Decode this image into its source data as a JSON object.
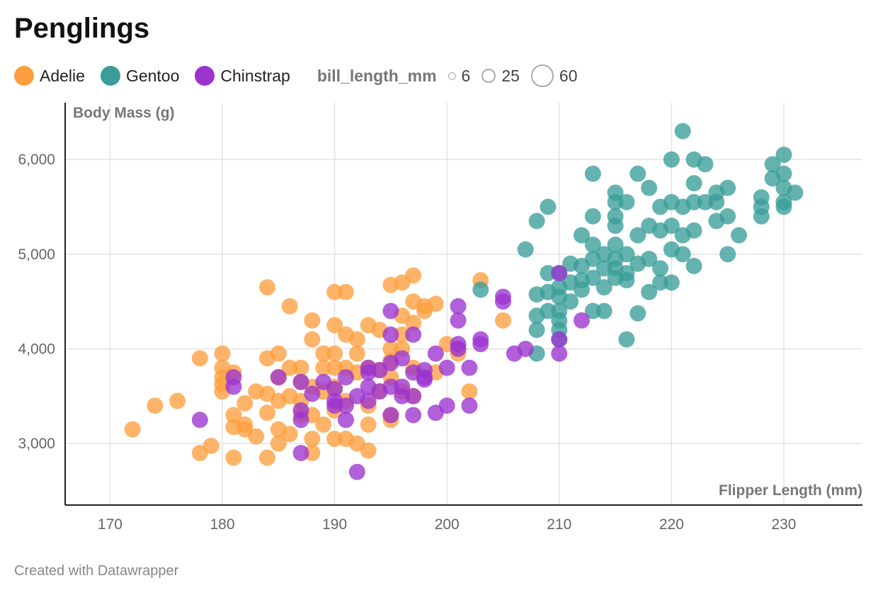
{
  "title": "Penglings",
  "footer": "Created with Datawrapper",
  "legend": {
    "species": [
      {
        "label": "Adelie",
        "color": "#fd9f3f"
      },
      {
        "label": "Gentoo",
        "color": "#3a9d98"
      },
      {
        "label": "Chinstrap",
        "color": "#9b33cf"
      }
    ],
    "size_title": "bill_length_mm",
    "size_items": [
      "6",
      "25",
      "60"
    ]
  },
  "chart_data": {
    "type": "scatter",
    "title": "Penglings",
    "xlabel": "Flipper Length (mm)",
    "ylabel": "Body Mass (g)",
    "xlim": [
      166,
      237
    ],
    "ylim": [
      2350,
      6600
    ],
    "x_ticks": [
      170,
      180,
      190,
      200,
      210,
      220,
      230
    ],
    "y_ticks": [
      3000,
      4000,
      5000,
      6000
    ],
    "x_tick_labels": [
      "170",
      "180",
      "190",
      "200",
      "210",
      "220",
      "230"
    ],
    "y_tick_labels": [
      "3,000",
      "4,000",
      "5,000",
      "6,000"
    ],
    "grid": true,
    "series": [
      {
        "name": "Adelie",
        "color": "#fd9f3f",
        "points": [
          [
            172,
            3150
          ],
          [
            174,
            3400
          ],
          [
            176,
            3450
          ],
          [
            178,
            3900
          ],
          [
            178,
            2900
          ],
          [
            179,
            2975
          ],
          [
            180,
            3950
          ],
          [
            180,
            3800
          ],
          [
            180,
            3700
          ],
          [
            180,
            3625
          ],
          [
            180,
            3550
          ],
          [
            181,
            3750
          ],
          [
            181,
            3300
          ],
          [
            181,
            3175
          ],
          [
            181,
            2850
          ],
          [
            182,
            3425
          ],
          [
            182,
            3200
          ],
          [
            182,
            3150
          ],
          [
            183,
            3550
          ],
          [
            183,
            3075
          ],
          [
            184,
            4650
          ],
          [
            184,
            3900
          ],
          [
            184,
            3525
          ],
          [
            184,
            3325
          ],
          [
            184,
            2850
          ],
          [
            185,
            3950
          ],
          [
            185,
            3700
          ],
          [
            185,
            3450
          ],
          [
            185,
            3150
          ],
          [
            185,
            3000
          ],
          [
            186,
            4450
          ],
          [
            186,
            3800
          ],
          [
            186,
            3500
          ],
          [
            186,
            3100
          ],
          [
            187,
            3800
          ],
          [
            187,
            3650
          ],
          [
            187,
            3450
          ],
          [
            187,
            3300
          ],
          [
            188,
            4300
          ],
          [
            188,
            4100
          ],
          [
            188,
            3600
          ],
          [
            188,
            3300
          ],
          [
            188,
            3050
          ],
          [
            188,
            2900
          ],
          [
            189,
            3950
          ],
          [
            189,
            3800
          ],
          [
            189,
            3550
          ],
          [
            189,
            3200
          ],
          [
            190,
            4600
          ],
          [
            190,
            4250
          ],
          [
            190,
            3950
          ],
          [
            190,
            3800
          ],
          [
            190,
            3600
          ],
          [
            190,
            3350
          ],
          [
            190,
            3050
          ],
          [
            191,
            4600
          ],
          [
            191,
            4150
          ],
          [
            191,
            3800
          ],
          [
            191,
            3450
          ],
          [
            191,
            3050
          ],
          [
            192,
            4100
          ],
          [
            192,
            3950
          ],
          [
            192,
            3750
          ],
          [
            192,
            3000
          ],
          [
            193,
            4250
          ],
          [
            193,
            3800
          ],
          [
            193,
            3400
          ],
          [
            193,
            3200
          ],
          [
            193,
            2925
          ],
          [
            194,
            4200
          ],
          [
            194,
            3775
          ],
          [
            194,
            3550
          ],
          [
            195,
            4675
          ],
          [
            195,
            4000
          ],
          [
            195,
            3875
          ],
          [
            195,
            3700
          ],
          [
            195,
            3300
          ],
          [
            195,
            3250
          ],
          [
            196,
            4700
          ],
          [
            196,
            4350
          ],
          [
            196,
            4150
          ],
          [
            196,
            4000
          ],
          [
            196,
            3550
          ],
          [
            197,
            4775
          ],
          [
            197,
            4500
          ],
          [
            197,
            4275
          ],
          [
            197,
            3800
          ],
          [
            197,
            3500
          ],
          [
            198,
            4450
          ],
          [
            198,
            4400
          ],
          [
            199,
            4475
          ],
          [
            199,
            3750
          ],
          [
            200,
            4050
          ],
          [
            201,
            4000
          ],
          [
            201,
            3950
          ],
          [
            202,
            3550
          ],
          [
            203,
            4725
          ],
          [
            205,
            4300
          ]
        ]
      },
      {
        "name": "Gentoo",
        "color": "#3a9d98",
        "points": [
          [
            203,
            4625
          ],
          [
            207,
            5050
          ],
          [
            208,
            5350
          ],
          [
            208,
            4575
          ],
          [
            208,
            4350
          ],
          [
            208,
            4200
          ],
          [
            208,
            3950
          ],
          [
            209,
            5500
          ],
          [
            209,
            4800
          ],
          [
            209,
            4600
          ],
          [
            209,
            4400
          ],
          [
            210,
            4800
          ],
          [
            210,
            4650
          ],
          [
            210,
            4550
          ],
          [
            210,
            4400
          ],
          [
            210,
            4300
          ],
          [
            210,
            4200
          ],
          [
            210,
            4100
          ],
          [
            211,
            4900
          ],
          [
            211,
            4700
          ],
          [
            211,
            4500
          ],
          [
            212,
            5200
          ],
          [
            212,
            4875
          ],
          [
            212,
            4725
          ],
          [
            212,
            4625
          ],
          [
            213,
            5850
          ],
          [
            213,
            5400
          ],
          [
            213,
            5100
          ],
          [
            213,
            4950
          ],
          [
            213,
            4750
          ],
          [
            213,
            4400
          ],
          [
            214,
            5000
          ],
          [
            214,
            4850
          ],
          [
            214,
            4650
          ],
          [
            214,
            4400
          ],
          [
            215,
            5650
          ],
          [
            215,
            5550
          ],
          [
            215,
            5400
          ],
          [
            215,
            5300
          ],
          [
            215,
            5100
          ],
          [
            215,
            4950
          ],
          [
            215,
            4850
          ],
          [
            215,
            4750
          ],
          [
            216,
            5550
          ],
          [
            216,
            5000
          ],
          [
            216,
            4800
          ],
          [
            216,
            4725
          ],
          [
            216,
            4100
          ],
          [
            217,
            5850
          ],
          [
            217,
            5200
          ],
          [
            217,
            4900
          ],
          [
            217,
            4375
          ],
          [
            218,
            5700
          ],
          [
            218,
            5300
          ],
          [
            218,
            4950
          ],
          [
            218,
            4600
          ],
          [
            219,
            5500
          ],
          [
            219,
            5250
          ],
          [
            219,
            4850
          ],
          [
            219,
            4700
          ],
          [
            220,
            6000
          ],
          [
            220,
            5550
          ],
          [
            220,
            5300
          ],
          [
            220,
            5050
          ],
          [
            220,
            4700
          ],
          [
            221,
            6300
          ],
          [
            221,
            5500
          ],
          [
            221,
            5200
          ],
          [
            221,
            5000
          ],
          [
            222,
            6000
          ],
          [
            222,
            5750
          ],
          [
            222,
            5550
          ],
          [
            222,
            5250
          ],
          [
            222,
            4875
          ],
          [
            223,
            5950
          ],
          [
            223,
            5550
          ],
          [
            224,
            5650
          ],
          [
            224,
            5550
          ],
          [
            224,
            5350
          ],
          [
            225,
            5700
          ],
          [
            225,
            5400
          ],
          [
            225,
            5000
          ],
          [
            226,
            5200
          ],
          [
            228,
            5600
          ],
          [
            228,
            5500
          ],
          [
            228,
            5400
          ],
          [
            229,
            5950
          ],
          [
            229,
            5800
          ],
          [
            230,
            6050
          ],
          [
            230,
            5850
          ],
          [
            230,
            5700
          ],
          [
            230,
            5550
          ],
          [
            230,
            5500
          ],
          [
            231,
            5650
          ]
        ]
      },
      {
        "name": "Chinstrap",
        "color": "#9b33cf",
        "points": [
          [
            178,
            3250
          ],
          [
            181,
            3700
          ],
          [
            181,
            3600
          ],
          [
            185,
            3700
          ],
          [
            187,
            3650
          ],
          [
            187,
            3350
          ],
          [
            187,
            3250
          ],
          [
            187,
            2900
          ],
          [
            188,
            3525
          ],
          [
            189,
            3650
          ],
          [
            190,
            3575
          ],
          [
            190,
            3450
          ],
          [
            190,
            3400
          ],
          [
            191,
            3700
          ],
          [
            191,
            3400
          ],
          [
            191,
            3250
          ],
          [
            192,
            3500
          ],
          [
            192,
            2700
          ],
          [
            193,
            3800
          ],
          [
            193,
            3750
          ],
          [
            193,
            3600
          ],
          [
            193,
            3450
          ],
          [
            194,
            3775
          ],
          [
            194,
            3550
          ],
          [
            195,
            4400
          ],
          [
            195,
            4150
          ],
          [
            195,
            3850
          ],
          [
            195,
            3600
          ],
          [
            195,
            3300
          ],
          [
            196,
            3900
          ],
          [
            196,
            3600
          ],
          [
            196,
            3500
          ],
          [
            197,
            4150
          ],
          [
            197,
            3750
          ],
          [
            197,
            3500
          ],
          [
            197,
            3300
          ],
          [
            198,
            3775
          ],
          [
            198,
            3675
          ],
          [
            198,
            3700
          ],
          [
            199,
            3950
          ],
          [
            199,
            3325
          ],
          [
            200,
            3800
          ],
          [
            200,
            3400
          ],
          [
            201,
            4450
          ],
          [
            201,
            4300
          ],
          [
            201,
            4050
          ],
          [
            201,
            4000
          ],
          [
            202,
            3800
          ],
          [
            202,
            3400
          ],
          [
            203,
            4100
          ],
          [
            203,
            4050
          ],
          [
            205,
            4550
          ],
          [
            205,
            4500
          ],
          [
            206,
            3950
          ],
          [
            207,
            4000
          ],
          [
            210,
            4800
          ],
          [
            210,
            4100
          ],
          [
            210,
            3950
          ],
          [
            212,
            4300
          ]
        ]
      }
    ]
  }
}
